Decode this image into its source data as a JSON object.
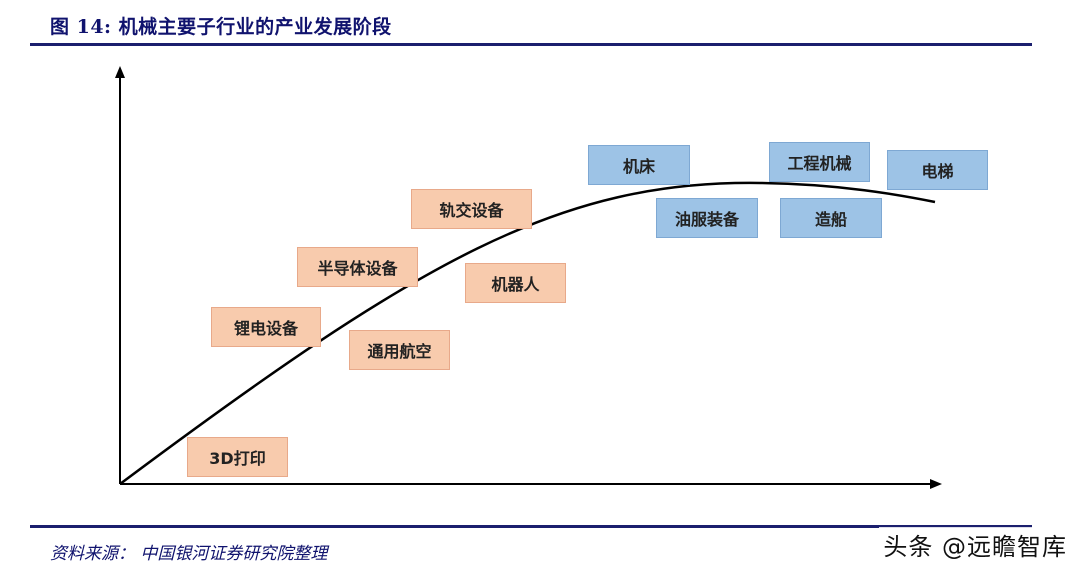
{
  "title": "图 14:  机械主要子行业的产业发展阶段",
  "source": "资料来源：  中国银河证券研究院整理",
  "watermark": "头条 @远瞻智库",
  "colors": {
    "navy": "#10136e",
    "orange_box": "#f8cbad",
    "blue_box": "#9dc3e6",
    "curve": "#000000"
  },
  "stages": {
    "growth": [
      "3D打印",
      "锂电设备",
      "通用航空",
      "半导体设备",
      "机器人",
      "轨交设备"
    ],
    "mature": [
      "机床",
      "油服装备",
      "工程机械",
      "造船",
      "电梯"
    ]
  }
}
